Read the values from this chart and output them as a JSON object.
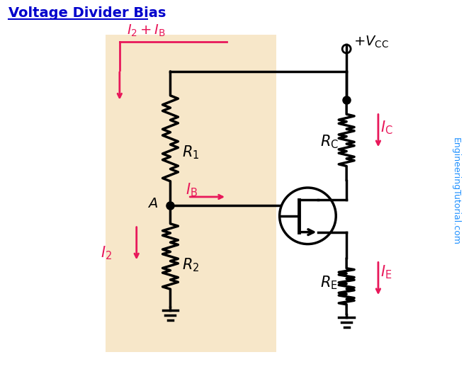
{
  "title": "Voltage Divider Bias",
  "bg_color": "#FFFFFF",
  "panel_color": "#F5DEB3",
  "panel_alpha": 0.7,
  "wire_color": "#000000",
  "arrow_color": "#E8185A",
  "text_color_title": "#0000CC",
  "text_color_label": "#000000",
  "watermark": "EngineeringTutorial.com",
  "watermark_color": "#1E90FF"
}
